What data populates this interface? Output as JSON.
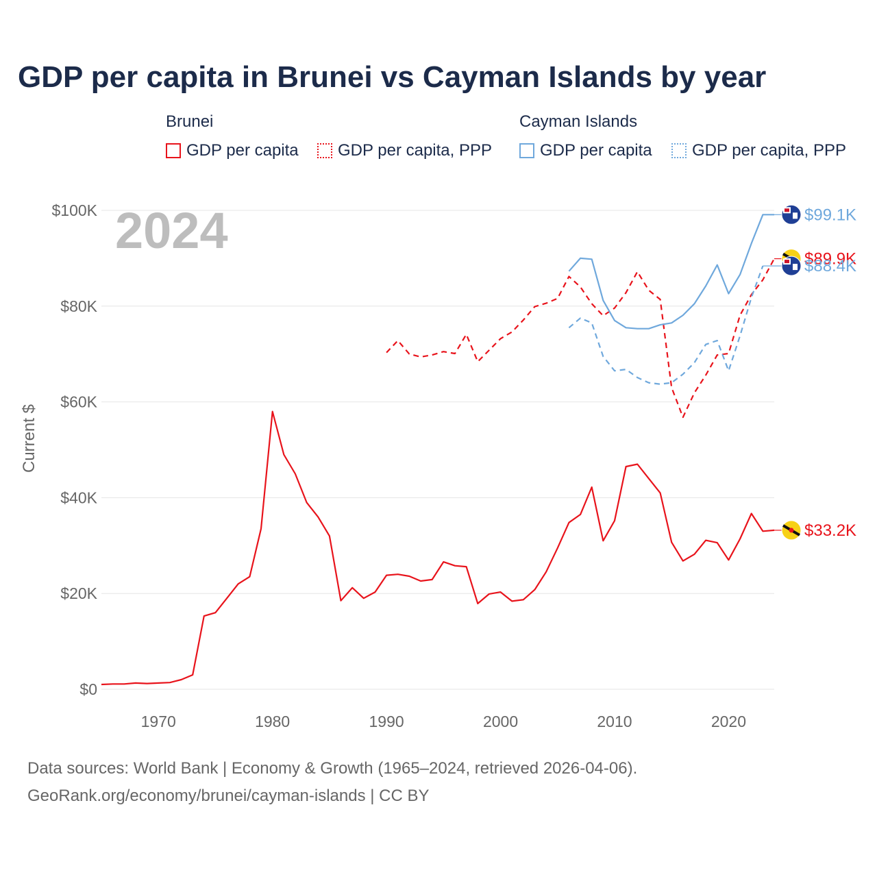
{
  "colors": {
    "brunei": "#e8131b",
    "cayman": "#6fa8dc",
    "title": "#1c2b4a",
    "grid": "#e5e5e5",
    "axis_text": "#666666",
    "year_watermark": "#bdbdbd"
  },
  "chart_data": {
    "type": "line",
    "title": "GDP per capita in Brunei vs Cayman Islands by year",
    "xlabel": "",
    "ylabel": "Current $",
    "xlim": [
      1965,
      2024
    ],
    "ylim": [
      0,
      100000
    ],
    "x_ticks": [
      1970,
      1980,
      1990,
      2000,
      2010,
      2020
    ],
    "y_ticks": [
      0,
      20000,
      40000,
      60000,
      80000,
      100000
    ],
    "y_tick_labels": [
      "$0",
      "$20K",
      "$40K",
      "$60K",
      "$80K",
      "$100K"
    ],
    "current_year": "2024",
    "legend": {
      "groups": [
        {
          "name": "Brunei",
          "items": [
            {
              "label": "GDP per capita",
              "style": "solid"
            },
            {
              "label": "GDP per capita, PPP",
              "style": "dotted"
            }
          ]
        },
        {
          "name": "Cayman Islands",
          "items": [
            {
              "label": "GDP per capita",
              "style": "solid"
            },
            {
              "label": "GDP per capita, PPP",
              "style": "dotted"
            }
          ]
        }
      ]
    },
    "series": [
      {
        "name": "Brunei — GDP per capita",
        "country": "brunei",
        "dash": "solid",
        "end_label": "$33.2K",
        "x": [
          1965,
          1966,
          1967,
          1968,
          1969,
          1970,
          1971,
          1972,
          1973,
          1974,
          1975,
          1976,
          1977,
          1978,
          1979,
          1980,
          1981,
          1982,
          1983,
          1984,
          1985,
          1986,
          1987,
          1988,
          1989,
          1990,
          1991,
          1992,
          1993,
          1994,
          1995,
          1996,
          1997,
          1998,
          1999,
          2000,
          2001,
          2002,
          2003,
          2004,
          2005,
          2006,
          2007,
          2008,
          2009,
          2010,
          2011,
          2012,
          2013,
          2014,
          2015,
          2016,
          2017,
          2018,
          2019,
          2020,
          2021,
          2022,
          2023,
          2024
        ],
        "values": [
          1000,
          1100,
          1100,
          1300,
          1200,
          1300,
          1400,
          2000,
          3000,
          15300,
          16000,
          19000,
          22000,
          23500,
          33500,
          58000,
          49000,
          45000,
          39000,
          36000,
          32000,
          18500,
          21200,
          19000,
          20300,
          23800,
          24000,
          23600,
          22600,
          22900,
          26600,
          25800,
          25600,
          17900,
          19900,
          20300,
          18400,
          18700,
          20800,
          24500,
          29500,
          34800,
          36500,
          42200,
          31000,
          35200,
          46500,
          47000,
          44000,
          41000,
          30700,
          26800,
          28200,
          31100,
          30600,
          27000,
          31400,
          36700,
          33000,
          33200
        ]
      },
      {
        "name": "Brunei — GDP per capita, PPP",
        "country": "brunei",
        "dash": "dashed",
        "end_label": "$89.9K",
        "x": [
          1990,
          1991,
          1992,
          1993,
          1994,
          1995,
          1996,
          1997,
          1998,
          1999,
          2000,
          2001,
          2002,
          2003,
          2004,
          2005,
          2006,
          2007,
          2008,
          2009,
          2010,
          2011,
          2012,
          2013,
          2014,
          2015,
          2016,
          2017,
          2018,
          2019,
          2020,
          2021,
          2022,
          2023,
          2024
        ],
        "values": [
          70300,
          72800,
          70000,
          69400,
          69800,
          70500,
          70100,
          74100,
          68400,
          70800,
          73200,
          74600,
          77100,
          79900,
          80600,
          81600,
          86200,
          84000,
          80500,
          78000,
          79600,
          82800,
          87200,
          83300,
          81400,
          63000,
          56800,
          61900,
          65600,
          69800,
          70100,
          78100,
          82400,
          85500,
          89900
        ]
      },
      {
        "name": "Cayman Islands — GDP per capita",
        "country": "cayman",
        "dash": "solid",
        "end_label": "$99.1K",
        "x": [
          2006,
          2007,
          2008,
          2009,
          2010,
          2011,
          2012,
          2013,
          2014,
          2015,
          2016,
          2017,
          2018,
          2019,
          2020,
          2021,
          2022,
          2023,
          2024
        ],
        "values": [
          87300,
          90000,
          89800,
          81200,
          77000,
          75500,
          75300,
          75300,
          76100,
          76500,
          78100,
          80500,
          84200,
          88600,
          82600,
          86600,
          93100,
          99100,
          99100
        ]
      },
      {
        "name": "Cayman Islands — GDP per capita, PPP",
        "country": "cayman",
        "dash": "dashed",
        "end_label": "$88.4K",
        "x": [
          2006,
          2007,
          2008,
          2009,
          2010,
          2011,
          2012,
          2013,
          2014,
          2015,
          2016,
          2017,
          2018,
          2019,
          2020,
          2021,
          2022,
          2023
        ],
        "values": [
          75500,
          77500,
          76500,
          69500,
          66500,
          66800,
          65100,
          64000,
          63700,
          64000,
          65800,
          68200,
          72000,
          72800,
          66500,
          73800,
          81800,
          88400
        ]
      }
    ]
  },
  "footer": {
    "line1": "Data sources: World Bank | Economy & Growth (1965–2024, retrieved 2026-04-06).",
    "line2": "GeoRank.org/economy/brunei/cayman-islands | CC BY"
  }
}
